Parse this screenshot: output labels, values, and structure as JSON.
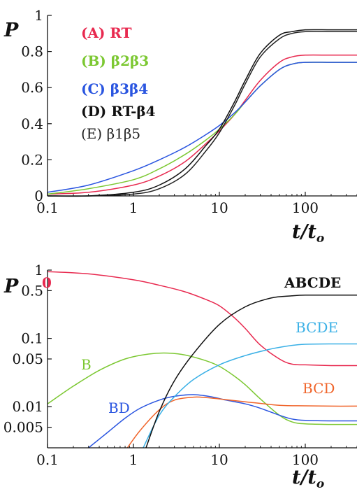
{
  "colors": {
    "A": "#e8294f",
    "B": "#7cc832",
    "C": "#2a55e0",
    "D": "#111111",
    "E": "#222222",
    "zero": "#e8294f",
    "BD": "#2a55e0",
    "BCD": "#f0642a",
    "BCDE": "#3ab0e6",
    "ABCDE": "#111111"
  },
  "chart_data": [
    {
      "type": "line",
      "xscale": "log",
      "xlim": [
        0.1,
        400
      ],
      "ylim": [
        0,
        1
      ],
      "ylabel": "P",
      "xlabel": "t/t",
      "xlabel_sub": "o",
      "xticks": [
        {
          "value": 0.1,
          "label": "0.1"
        },
        {
          "value": 1,
          "label": "1"
        },
        {
          "value": 10,
          "label": "10"
        },
        {
          "value": 100,
          "label": "100"
        }
      ],
      "yticks": [
        {
          "value": 0,
          "label": "0"
        },
        {
          "value": 0.2,
          "label": "0.2"
        },
        {
          "value": 0.4,
          "label": "0.4"
        },
        {
          "value": 0.6,
          "label": "0.6"
        },
        {
          "value": 0.8,
          "label": "0.8"
        },
        {
          "value": 1,
          "label": "1"
        }
      ],
      "legend_position": "top-left",
      "series": [
        {
          "key": "A",
          "name": "(A) RT",
          "color_key": "A",
          "x": [
            0.1,
            0.3,
            1,
            2,
            4,
            7,
            10,
            15,
            20,
            30,
            50,
            70,
            100,
            200,
            400
          ],
          "y": [
            0.01,
            0.02,
            0.06,
            0.11,
            0.19,
            0.29,
            0.36,
            0.45,
            0.53,
            0.64,
            0.74,
            0.77,
            0.78,
            0.78,
            0.78
          ]
        },
        {
          "key": "B",
          "name": "(B) β2β3",
          "color_key": "B",
          "x": [
            0.1,
            0.3,
            1,
            2,
            4,
            7,
            10,
            15,
            20,
            30,
            50,
            70,
            100,
            200,
            400
          ],
          "y": [
            0.01,
            0.04,
            0.09,
            0.15,
            0.23,
            0.31,
            0.37,
            0.45,
            0.52,
            0.61,
            0.7,
            0.73,
            0.74,
            0.74,
            0.74
          ]
        },
        {
          "key": "C",
          "name": "(C) β3β4",
          "color_key": "C",
          "x": [
            0.1,
            0.3,
            1,
            2,
            4,
            7,
            10,
            15,
            20,
            30,
            50,
            70,
            100,
            200,
            400
          ],
          "y": [
            0.02,
            0.06,
            0.14,
            0.2,
            0.27,
            0.34,
            0.39,
            0.46,
            0.52,
            0.61,
            0.7,
            0.73,
            0.74,
            0.74,
            0.74
          ]
        },
        {
          "key": "D",
          "name": "(D) RT-β4",
          "color_key": "D",
          "x": [
            0.1,
            0.3,
            1,
            2,
            4,
            7,
            10,
            15,
            20,
            30,
            50,
            70,
            100,
            200,
            400
          ],
          "y": [
            0.0,
            0.0,
            0.02,
            0.06,
            0.15,
            0.28,
            0.37,
            0.52,
            0.64,
            0.79,
            0.89,
            0.91,
            0.92,
            0.92,
            0.92
          ]
        },
        {
          "key": "E",
          "name": "(E) β1β5",
          "color_key": "E",
          "x": [
            0.1,
            0.3,
            1,
            2,
            4,
            7,
            10,
            15,
            20,
            30,
            50,
            70,
            100,
            200,
            400
          ],
          "y": [
            0.0,
            0.0,
            0.01,
            0.04,
            0.12,
            0.25,
            0.35,
            0.5,
            0.62,
            0.77,
            0.87,
            0.9,
            0.91,
            0.91,
            0.91
          ]
        }
      ]
    },
    {
      "type": "line",
      "xscale": "log",
      "yscale": "log",
      "xlim": [
        0.1,
        400
      ],
      "ylim": [
        0.0025,
        1
      ],
      "ylabel": "P",
      "xlabel": "t/t",
      "xlabel_sub": "o",
      "xticks": [
        {
          "value": 0.1,
          "label": "0.1"
        },
        {
          "value": 1,
          "label": "1"
        },
        {
          "value": 10,
          "label": "10"
        },
        {
          "value": 100,
          "label": "100"
        }
      ],
      "yticks": [
        {
          "value": 1,
          "label": "1"
        },
        {
          "value": 0.5,
          "label": "0.5"
        },
        {
          "value": 0.1,
          "label": "0.1"
        },
        {
          "value": 0.05,
          "label": "0.05"
        },
        {
          "value": 0.01,
          "label": "0.01"
        },
        {
          "value": 0.005,
          "label": "0.005"
        }
      ],
      "series": [
        {
          "key": "zero",
          "name": "0",
          "color_key": "zero",
          "x": [
            0.1,
            0.3,
            1,
            2,
            4,
            7,
            10,
            15,
            20,
            30,
            50,
            70,
            100,
            200,
            400
          ],
          "y": [
            0.95,
            0.88,
            0.72,
            0.6,
            0.48,
            0.37,
            0.3,
            0.2,
            0.14,
            0.08,
            0.05,
            0.042,
            0.041,
            0.04,
            0.04
          ]
        },
        {
          "key": "B",
          "name": "B",
          "color_key": "B",
          "x": [
            0.1,
            0.2,
            0.4,
            0.8,
            1.5,
            2.5,
            4,
            7,
            10,
            15,
            20,
            30,
            50,
            70,
            100,
            200,
            400
          ],
          "y": [
            0.011,
            0.02,
            0.034,
            0.05,
            0.059,
            0.061,
            0.057,
            0.047,
            0.039,
            0.028,
            0.021,
            0.013,
            0.0075,
            0.006,
            0.0056,
            0.0055,
            0.0055
          ]
        },
        {
          "key": "BD",
          "name": "BD",
          "color_key": "BD",
          "x": [
            0.3,
            0.5,
            0.8,
            1.2,
            2,
            3,
            5,
            8,
            12,
            20,
            30,
            50,
            70,
            100,
            200,
            400
          ],
          "y": [
            0.0025,
            0.0042,
            0.0068,
            0.0095,
            0.0125,
            0.0142,
            0.015,
            0.014,
            0.0125,
            0.011,
            0.0095,
            0.0075,
            0.0066,
            0.0063,
            0.0062,
            0.0062
          ]
        },
        {
          "key": "BCD",
          "name": "BCD",
          "color_key": "BCD",
          "x": [
            0.85,
            1.2,
            2,
            3,
            5,
            7,
            10,
            20,
            50,
            100,
            200,
            400
          ],
          "y": [
            0.0025,
            0.0045,
            0.009,
            0.0125,
            0.0138,
            0.0136,
            0.013,
            0.0118,
            0.0105,
            0.0103,
            0.0102,
            0.0102
          ]
        },
        {
          "key": "BCDE",
          "name": "BCDE",
          "color_key": "BCDE",
          "x": [
            1.3,
            2,
            3,
            5,
            10,
            20,
            40,
            70,
            100,
            200,
            400
          ],
          "y": [
            0.0025,
            0.0075,
            0.014,
            0.025,
            0.041,
            0.056,
            0.07,
            0.079,
            0.082,
            0.083,
            0.083
          ]
        },
        {
          "key": "ABCDE",
          "name": "ABCDE",
          "color_key": "ABCDE",
          "x": [
            1.4,
            2,
            3,
            5,
            10,
            20,
            40,
            70,
            100,
            200,
            400
          ],
          "y": [
            0.0025,
            0.0085,
            0.024,
            0.06,
            0.16,
            0.29,
            0.39,
            0.42,
            0.43,
            0.43,
            0.43
          ]
        }
      ]
    }
  ]
}
